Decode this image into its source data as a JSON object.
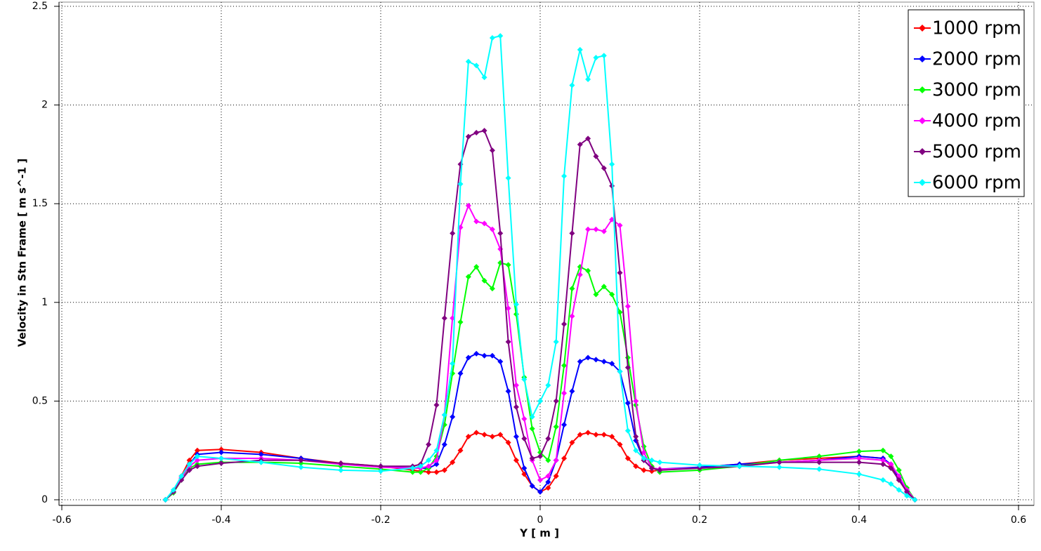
{
  "chart_data": {
    "type": "line",
    "x_label": "Y [ m ]",
    "y_label": "Velocity in Stn Frame [ m s^-1 ]",
    "x": [
      -0.47,
      -0.46,
      -0.45,
      -0.44,
      -0.43,
      -0.4,
      -0.35,
      -0.3,
      -0.25,
      -0.2,
      -0.16,
      -0.15,
      -0.14,
      -0.13,
      -0.12,
      -0.11,
      -0.1,
      -0.09,
      -0.08,
      -0.07,
      -0.06,
      -0.05,
      -0.04,
      -0.03,
      -0.02,
      -0.01,
      0,
      0.01,
      0.02,
      0.03,
      0.04,
      0.05,
      0.06,
      0.07,
      0.08,
      0.09,
      0.1,
      0.11,
      0.12,
      0.13,
      0.14,
      0.15,
      0.2,
      0.25,
      0.3,
      0.35,
      0.4,
      0.43,
      0.44,
      0.45,
      0.46,
      0.47
    ],
    "series": [
      {
        "name": "1000 rpm",
        "color": "#ff0000",
        "values": [
          0,
          0.04,
          0.12,
          0.2,
          0.25,
          0.255,
          0.24,
          0.21,
          0.185,
          0.17,
          0.15,
          0.145,
          0.14,
          0.14,
          0.15,
          0.19,
          0.25,
          0.32,
          0.34,
          0.33,
          0.32,
          0.33,
          0.29,
          0.2,
          0.13,
          0.07,
          0.04,
          0.06,
          0.12,
          0.21,
          0.29,
          0.33,
          0.34,
          0.33,
          0.33,
          0.32,
          0.28,
          0.21,
          0.17,
          0.15,
          0.145,
          0.15,
          0.165,
          0.18,
          0.2,
          0.21,
          0.22,
          0.21,
          0.17,
          0.1,
          0.04,
          0
        ]
      },
      {
        "name": "2000 rpm",
        "color": "#0000ff",
        "values": [
          0,
          0.04,
          0.11,
          0.18,
          0.23,
          0.24,
          0.23,
          0.21,
          0.18,
          0.17,
          0.16,
          0.16,
          0.16,
          0.18,
          0.28,
          0.42,
          0.64,
          0.72,
          0.74,
          0.73,
          0.73,
          0.7,
          0.55,
          0.32,
          0.16,
          0.07,
          0.04,
          0.09,
          0.2,
          0.38,
          0.55,
          0.7,
          0.72,
          0.71,
          0.7,
          0.69,
          0.65,
          0.49,
          0.3,
          0.2,
          0.16,
          0.155,
          0.165,
          0.18,
          0.19,
          0.2,
          0.22,
          0.21,
          0.18,
          0.11,
          0.04,
          0
        ]
      },
      {
        "name": "3000 rpm",
        "color": "#00ff00",
        "values": [
          0,
          0.035,
          0.1,
          0.16,
          0.18,
          0.19,
          0.19,
          0.185,
          0.17,
          0.155,
          0.14,
          0.14,
          0.16,
          0.22,
          0.38,
          0.64,
          0.9,
          1.13,
          1.18,
          1.11,
          1.07,
          1.2,
          1.19,
          0.94,
          0.62,
          0.36,
          0.24,
          0.2,
          0.37,
          0.68,
          1.07,
          1.18,
          1.16,
          1.04,
          1.08,
          1.04,
          0.95,
          0.72,
          0.48,
          0.27,
          0.17,
          0.14,
          0.15,
          0.17,
          0.2,
          0.22,
          0.245,
          0.25,
          0.22,
          0.15,
          0.06,
          0
        ]
      },
      {
        "name": "4000 rpm",
        "color": "#ff00ff",
        "values": [
          0,
          0.04,
          0.11,
          0.17,
          0.2,
          0.21,
          0.21,
          0.2,
          0.18,
          0.165,
          0.16,
          0.16,
          0.17,
          0.2,
          0.43,
          0.92,
          1.38,
          1.49,
          1.41,
          1.4,
          1.37,
          1.27,
          0.97,
          0.58,
          0.41,
          0.2,
          0.1,
          0.12,
          0.2,
          0.54,
          0.93,
          1.14,
          1.37,
          1.37,
          1.36,
          1.42,
          1.39,
          0.98,
          0.5,
          0.24,
          0.16,
          0.155,
          0.16,
          0.17,
          0.19,
          0.2,
          0.21,
          0.2,
          0.18,
          0.12,
          0.05,
          0
        ]
      },
      {
        "name": "5000 rpm",
        "color": "#800080",
        "values": [
          0,
          0.04,
          0.1,
          0.15,
          0.17,
          0.185,
          0.2,
          0.2,
          0.185,
          0.17,
          0.17,
          0.18,
          0.28,
          0.48,
          0.92,
          1.35,
          1.7,
          1.84,
          1.86,
          1.87,
          1.77,
          1.35,
          0.8,
          0.47,
          0.31,
          0.21,
          0.22,
          0.31,
          0.5,
          0.89,
          1.35,
          1.8,
          1.83,
          1.74,
          1.68,
          1.59,
          1.15,
          0.67,
          0.32,
          0.2,
          0.16,
          0.15,
          0.16,
          0.17,
          0.19,
          0.19,
          0.19,
          0.18,
          0.16,
          0.1,
          0.04,
          0
        ]
      },
      {
        "name": "6000 rpm",
        "color": "#00ffff",
        "values": [
          0,
          0.05,
          0.12,
          0.18,
          0.22,
          0.21,
          0.19,
          0.165,
          0.15,
          0.145,
          0.16,
          0.17,
          0.2,
          0.25,
          0.43,
          0.69,
          1.6,
          2.22,
          2.2,
          2.14,
          2.34,
          2.35,
          1.63,
          0.99,
          0.61,
          0.42,
          0.5,
          0.58,
          0.8,
          1.64,
          2.1,
          2.28,
          2.13,
          2.24,
          2.25,
          1.7,
          0.65,
          0.35,
          0.25,
          0.21,
          0.2,
          0.19,
          0.175,
          0.17,
          0.165,
          0.155,
          0.13,
          0.1,
          0.08,
          0.05,
          0.02,
          0
        ]
      }
    ],
    "xlim": [
      -0.6,
      0.6
    ],
    "xticks": [
      -0.6,
      -0.4,
      -0.2,
      0,
      0.2,
      0.4,
      0.6
    ],
    "ylim": [
      0,
      2.5
    ],
    "yticks": [
      0,
      0.5,
      1,
      1.5,
      2,
      2.5
    ],
    "grid": true,
    "legend": "upper right"
  }
}
